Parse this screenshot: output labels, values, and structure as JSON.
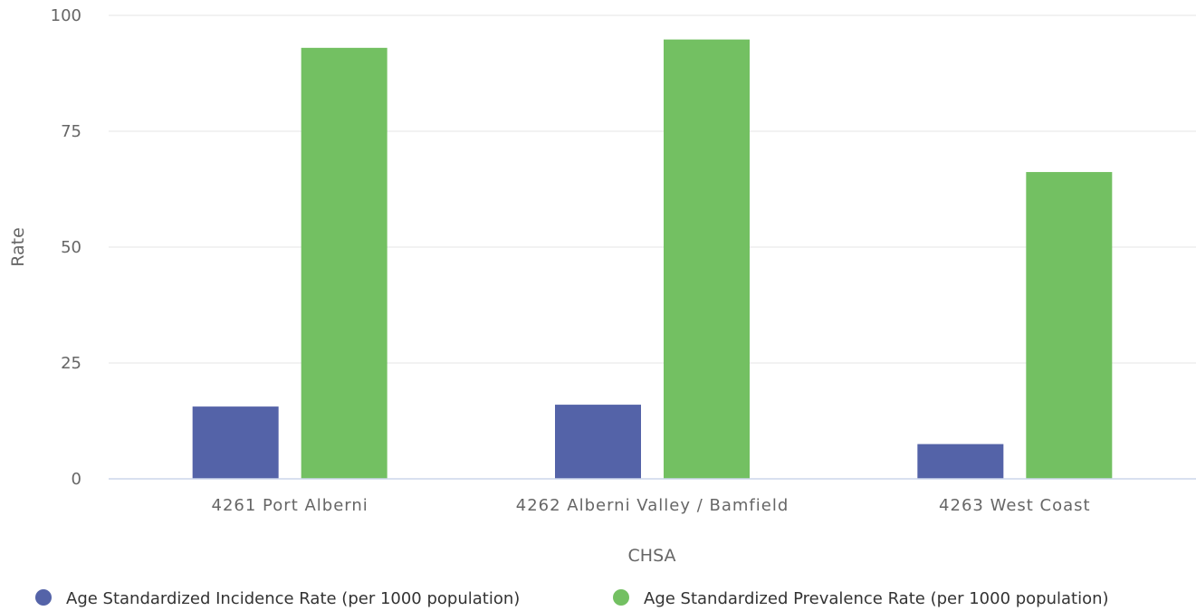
{
  "chart_data": {
    "type": "bar",
    "title": "",
    "xlabel": "CHSA",
    "ylabel": "Rate",
    "ylim": [
      0,
      100
    ],
    "yticks": [
      0,
      25,
      50,
      75,
      100
    ],
    "grid": true,
    "legend_position": "bottom",
    "categories": [
      "4261 Port Alberni",
      "4262 Alberni Valley / Bamfield",
      "4263 West Coast"
    ],
    "series": [
      {
        "name": "Age Standardized Incidence Rate (per 1000 population)",
        "color": "#5463a8",
        "values": [
          15.6,
          16.0,
          7.5
        ]
      },
      {
        "name": "Age Standardized Prevalence Rate (per 1000 population)",
        "color": "#73c062",
        "values": [
          93.0,
          94.8,
          66.2
        ]
      }
    ]
  }
}
